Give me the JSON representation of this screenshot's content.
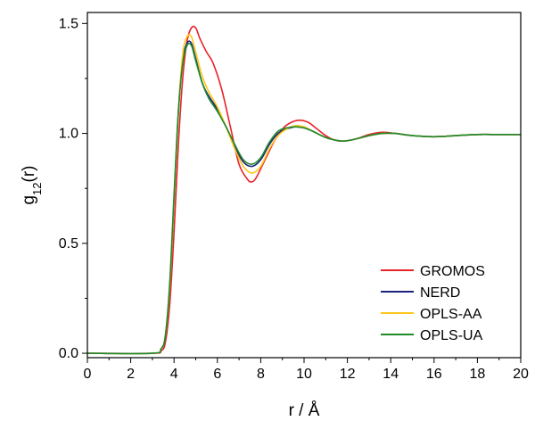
{
  "chart_data": {
    "type": "line",
    "xlabel": "r / Å",
    "ylabel": "g12(r)",
    "ylabel_main": "g",
    "ylabel_sub": "12",
    "ylabel_tail": "(r)",
    "xlim": [
      0,
      20
    ],
    "ylim": [
      -0.02,
      1.55
    ],
    "x_ticks": [
      0,
      2,
      4,
      6,
      8,
      10,
      12,
      14,
      16,
      18,
      20
    ],
    "x_tick_labels": [
      "0",
      "2",
      "4",
      "6",
      "8",
      "10",
      "12",
      "14",
      "16",
      "18",
      "20"
    ],
    "y_ticks": [
      0.0,
      0.5,
      1.0,
      1.5
    ],
    "y_tick_labels": [
      "0.0",
      "0.5",
      "1.0",
      "1.5"
    ],
    "grid": false,
    "legend_position": "bottom-right",
    "series": [
      {
        "name": "GROMOS",
        "color": "#e8232a",
        "x": [
          0,
          3.0,
          3.4,
          3.6,
          3.8,
          4.0,
          4.2,
          4.4,
          4.6,
          4.8,
          5.0,
          5.2,
          5.5,
          5.8,
          6.2,
          6.6,
          7.0,
          7.4,
          7.6,
          7.8,
          8.2,
          8.6,
          9.0,
          9.4,
          9.8,
          10.2,
          10.6,
          11.0,
          11.4,
          11.8,
          12.4,
          13.0,
          13.6,
          14.2,
          15.0,
          16.0,
          17.0,
          18.0,
          19.0,
          20.0
        ],
        "y": [
          0.0,
          0.0,
          0.01,
          0.05,
          0.22,
          0.55,
          0.95,
          1.25,
          1.42,
          1.48,
          1.48,
          1.43,
          1.37,
          1.32,
          1.2,
          1.03,
          0.86,
          0.79,
          0.78,
          0.8,
          0.88,
          0.96,
          1.02,
          1.05,
          1.06,
          1.05,
          1.02,
          0.99,
          0.97,
          0.965,
          0.975,
          0.995,
          1.005,
          1.0,
          0.99,
          0.985,
          0.99,
          0.995,
          0.995,
          0.995
        ]
      },
      {
        "name": "NERD",
        "color": "#1a237e",
        "x": [
          0,
          3.0,
          3.4,
          3.6,
          3.8,
          4.0,
          4.2,
          4.4,
          4.6,
          4.8,
          5.0,
          5.3,
          5.6,
          6.0,
          6.4,
          6.8,
          7.2,
          7.6,
          8.0,
          8.4,
          8.8,
          9.2,
          9.6,
          10.0,
          10.4,
          10.8,
          11.2,
          11.8,
          12.4,
          13.0,
          13.6,
          14.2,
          15.0,
          16.0,
          17.0,
          18.0,
          19.0,
          20.0
        ],
        "y": [
          0.0,
          0.0,
          0.02,
          0.08,
          0.3,
          0.7,
          1.1,
          1.33,
          1.41,
          1.41,
          1.34,
          1.23,
          1.17,
          1.11,
          1.03,
          0.94,
          0.87,
          0.85,
          0.88,
          0.95,
          1.0,
          1.02,
          1.03,
          1.025,
          1.01,
          0.99,
          0.975,
          0.965,
          0.975,
          0.99,
          1.0,
          1.0,
          0.99,
          0.985,
          0.99,
          0.995,
          0.995,
          0.995
        ]
      },
      {
        "name": "OPLS-AA",
        "color": "#ffc61a",
        "x": [
          0,
          3.0,
          3.4,
          3.6,
          3.8,
          4.0,
          4.2,
          4.4,
          4.6,
          4.8,
          5.0,
          5.3,
          5.6,
          6.0,
          6.4,
          6.8,
          7.2,
          7.6,
          8.0,
          8.4,
          8.8,
          9.2,
          9.6,
          10.0,
          10.4,
          10.8,
          11.2,
          11.8,
          12.4,
          13.0,
          13.6,
          14.2,
          15.0,
          16.0,
          17.0,
          18.0,
          19.0,
          20.0
        ],
        "y": [
          0.0,
          0.0,
          0.02,
          0.08,
          0.3,
          0.7,
          1.1,
          1.36,
          1.44,
          1.44,
          1.37,
          1.26,
          1.19,
          1.12,
          1.03,
          0.93,
          0.85,
          0.82,
          0.85,
          0.93,
          0.99,
          1.02,
          1.035,
          1.03,
          1.01,
          0.99,
          0.975,
          0.965,
          0.975,
          0.99,
          1.0,
          1.0,
          0.99,
          0.985,
          0.99,
          0.995,
          0.995,
          0.995
        ]
      },
      {
        "name": "OPLS-UA",
        "color": "#1f8a2a",
        "x": [
          0,
          3.0,
          3.4,
          3.6,
          3.8,
          4.0,
          4.2,
          4.4,
          4.6,
          4.8,
          5.0,
          5.3,
          5.6,
          6.0,
          6.4,
          6.8,
          7.2,
          7.6,
          8.0,
          8.4,
          8.8,
          9.2,
          9.6,
          10.0,
          10.4,
          10.8,
          11.2,
          11.8,
          12.4,
          13.0,
          13.6,
          14.2,
          15.0,
          16.0,
          17.0,
          18.0,
          19.0,
          20.0
        ],
        "y": [
          0.0,
          0.0,
          0.02,
          0.08,
          0.32,
          0.72,
          1.1,
          1.32,
          1.4,
          1.4,
          1.33,
          1.23,
          1.16,
          1.1,
          1.03,
          0.95,
          0.88,
          0.86,
          0.89,
          0.96,
          1.01,
          1.025,
          1.03,
          1.025,
          1.01,
          0.99,
          0.975,
          0.965,
          0.975,
          0.99,
          1.0,
          1.0,
          0.99,
          0.985,
          0.99,
          0.995,
          0.995,
          0.995
        ]
      }
    ]
  }
}
